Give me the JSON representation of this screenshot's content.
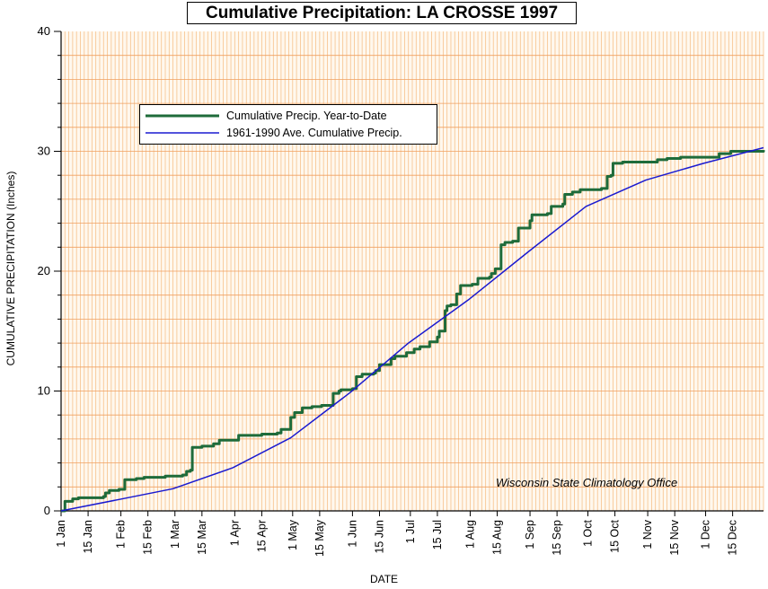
{
  "chart_data": {
    "type": "line",
    "title": "Cumulative Precipitation: LA CROSSE 1997",
    "xlabel": "DATE",
    "ylabel": "CUMULATIVE PRECIPITATION (Inches)",
    "annotation": "Wisconsin State Climatology Office",
    "xlim": [
      1,
      365
    ],
    "ylim": [
      0,
      40
    ],
    "yticks": [
      0,
      10,
      20,
      30,
      40
    ],
    "grid": true,
    "legend_position": "top-left",
    "xtick_labels": [
      {
        "label": "1 Jan",
        "day": 1
      },
      {
        "label": "15 Jan",
        "day": 15
      },
      {
        "label": "1 Feb",
        "day": 32
      },
      {
        "label": "15 Feb",
        "day": 46
      },
      {
        "label": "1 Mar",
        "day": 60
      },
      {
        "label": "15 Mar",
        "day": 74
      },
      {
        "label": "1 Apr",
        "day": 91
      },
      {
        "label": "15 Apr",
        "day": 105
      },
      {
        "label": "1 May",
        "day": 121
      },
      {
        "label": "15 May",
        "day": 135
      },
      {
        "label": "1 Jun",
        "day": 152
      },
      {
        "label": "15 Jun",
        "day": 166
      },
      {
        "label": "1 Jul",
        "day": 182
      },
      {
        "label": "15 Jul",
        "day": 196
      },
      {
        "label": "1 Aug",
        "day": 213
      },
      {
        "label": "15 Aug",
        "day": 227
      },
      {
        "label": "1 Sep",
        "day": 244
      },
      {
        "label": "15 Sep",
        "day": 258
      },
      {
        "label": "1 Oct",
        "day": 274
      },
      {
        "label": "15 Oct",
        "day": 288
      },
      {
        "label": "1 Nov",
        "day": 305
      },
      {
        "label": "15 Nov",
        "day": 319
      },
      {
        "label": "1 Dec",
        "day": 335
      },
      {
        "label": "15 Dec",
        "day": 349
      }
    ],
    "series": [
      {
        "name": "Cumulative Precip. Year-to-Date",
        "color": "#1e6b3a",
        "step": true,
        "points": [
          [
            1,
            0
          ],
          [
            3,
            0.8
          ],
          [
            7,
            1.0
          ],
          [
            10,
            1.1
          ],
          [
            23,
            1.2
          ],
          [
            24,
            1.5
          ],
          [
            26,
            1.7
          ],
          [
            31,
            1.8
          ],
          [
            33,
            1.8
          ],
          [
            34,
            2.6
          ],
          [
            40,
            2.7
          ],
          [
            44,
            2.8
          ],
          [
            55,
            2.9
          ],
          [
            64,
            3.0
          ],
          [
            66,
            3.3
          ],
          [
            68,
            3.4
          ],
          [
            69,
            5.3
          ],
          [
            74,
            5.4
          ],
          [
            80,
            5.6
          ],
          [
            83,
            5.9
          ],
          [
            93,
            6.3
          ],
          [
            105,
            6.4
          ],
          [
            113,
            6.5
          ],
          [
            115,
            6.8
          ],
          [
            120,
            7.8
          ],
          [
            122,
            8.2
          ],
          [
            126,
            8.6
          ],
          [
            131,
            8.7
          ],
          [
            136,
            8.8
          ],
          [
            142,
            9.8
          ],
          [
            145,
            10.0
          ],
          [
            146,
            10.1
          ],
          [
            152,
            10.2
          ],
          [
            154,
            11.2
          ],
          [
            157,
            11.4
          ],
          [
            163,
            11.5
          ],
          [
            164,
            11.7
          ],
          [
            166,
            12.2
          ],
          [
            172,
            12.7
          ],
          [
            174,
            12.9
          ],
          [
            180,
            13.2
          ],
          [
            184,
            13.5
          ],
          [
            187,
            13.7
          ],
          [
            192,
            14.1
          ],
          [
            196,
            14.5
          ],
          [
            197,
            15.0
          ],
          [
            200,
            16.7
          ],
          [
            201,
            17.1
          ],
          [
            203,
            17.2
          ],
          [
            206,
            18.1
          ],
          [
            208,
            18.8
          ],
          [
            214,
            18.9
          ],
          [
            217,
            19.4
          ],
          [
            223,
            19.5
          ],
          [
            224,
            19.8
          ],
          [
            226,
            20.2
          ],
          [
            229,
            22.2
          ],
          [
            231,
            22.4
          ],
          [
            235,
            22.5
          ],
          [
            238,
            23.6
          ],
          [
            244,
            24.2
          ],
          [
            245,
            24.7
          ],
          [
            253,
            24.8
          ],
          [
            255,
            25.4
          ],
          [
            261,
            25.6
          ],
          [
            262,
            26.4
          ],
          [
            266,
            26.6
          ],
          [
            270,
            26.8
          ],
          [
            281,
            26.9
          ],
          [
            284,
            27.9
          ],
          [
            286,
            28.0
          ],
          [
            287,
            29.0
          ],
          [
            292,
            29.1
          ],
          [
            300,
            29.1
          ],
          [
            310,
            29.3
          ],
          [
            315,
            29.4
          ],
          [
            322,
            29.5
          ],
          [
            340,
            29.5
          ],
          [
            342,
            29.8
          ],
          [
            348,
            30.0
          ],
          [
            365,
            30.1
          ]
        ]
      },
      {
        "name": "1961-1990 Ave. Cumulative Precip.",
        "color": "#1a1ad0",
        "step": false,
        "points": [
          [
            1,
            0
          ],
          [
            31,
            0.95
          ],
          [
            59,
            1.85
          ],
          [
            90,
            3.6
          ],
          [
            120,
            6.1
          ],
          [
            151,
            9.9
          ],
          [
            181,
            14.0
          ],
          [
            212,
            17.6
          ],
          [
            243,
            21.6
          ],
          [
            273,
            25.4
          ],
          [
            304,
            27.6
          ],
          [
            334,
            29.0
          ],
          [
            365,
            30.3
          ]
        ]
      }
    ]
  }
}
